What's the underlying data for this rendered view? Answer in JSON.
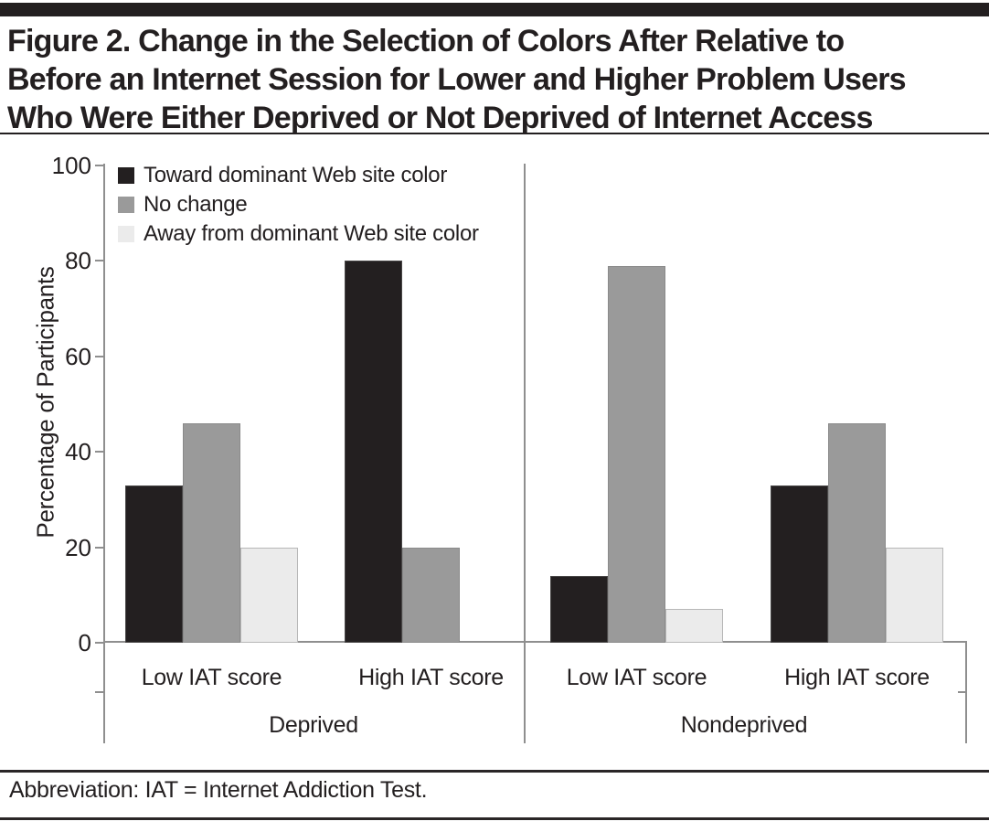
{
  "figure": {
    "title_lines": [
      "Figure 2. Change in the Selection of Colors After Relative to",
      "Before an Internet Session for Lower and Higher Problem Users",
      "Who Were Either Deprived or Not Deprived of Internet Access"
    ],
    "note": "Abbreviation: IAT = Internet Addiction Test."
  },
  "chart_data": {
    "type": "bar",
    "title": "",
    "xlabel": "",
    "ylabel": "Percentage of Participants",
    "ylim": [
      0,
      100
    ],
    "yticks": [
      0,
      20,
      40,
      60,
      80,
      100
    ],
    "grid": false,
    "legend_position": "top-left",
    "series": [
      {
        "name": "Toward dominant Web site color",
        "color": "#231f20"
      },
      {
        "name": "No change",
        "color": "#9a9a9a"
      },
      {
        "name": "Away from dominant Web site color",
        "color": "#ebebeb"
      }
    ],
    "panels": [
      {
        "label": "Deprived",
        "groups": [
          {
            "label": "Low IAT score",
            "values": [
              33,
              46,
              20
            ]
          },
          {
            "label": "High IAT score",
            "values": [
              80,
              20,
              0
            ]
          }
        ]
      },
      {
        "label": "Nondeprived",
        "groups": [
          {
            "label": "Low IAT score",
            "values": [
              14,
              79,
              7
            ]
          },
          {
            "label": "High IAT score",
            "values": [
              33,
              46,
              20
            ]
          }
        ]
      }
    ]
  },
  "colors": {
    "ink": "#231f20",
    "axis": "#8f8f8f",
    "bar_black": "#231f20",
    "bar_gray": "#9a9a9a",
    "bar_light": "#ebebeb"
  }
}
